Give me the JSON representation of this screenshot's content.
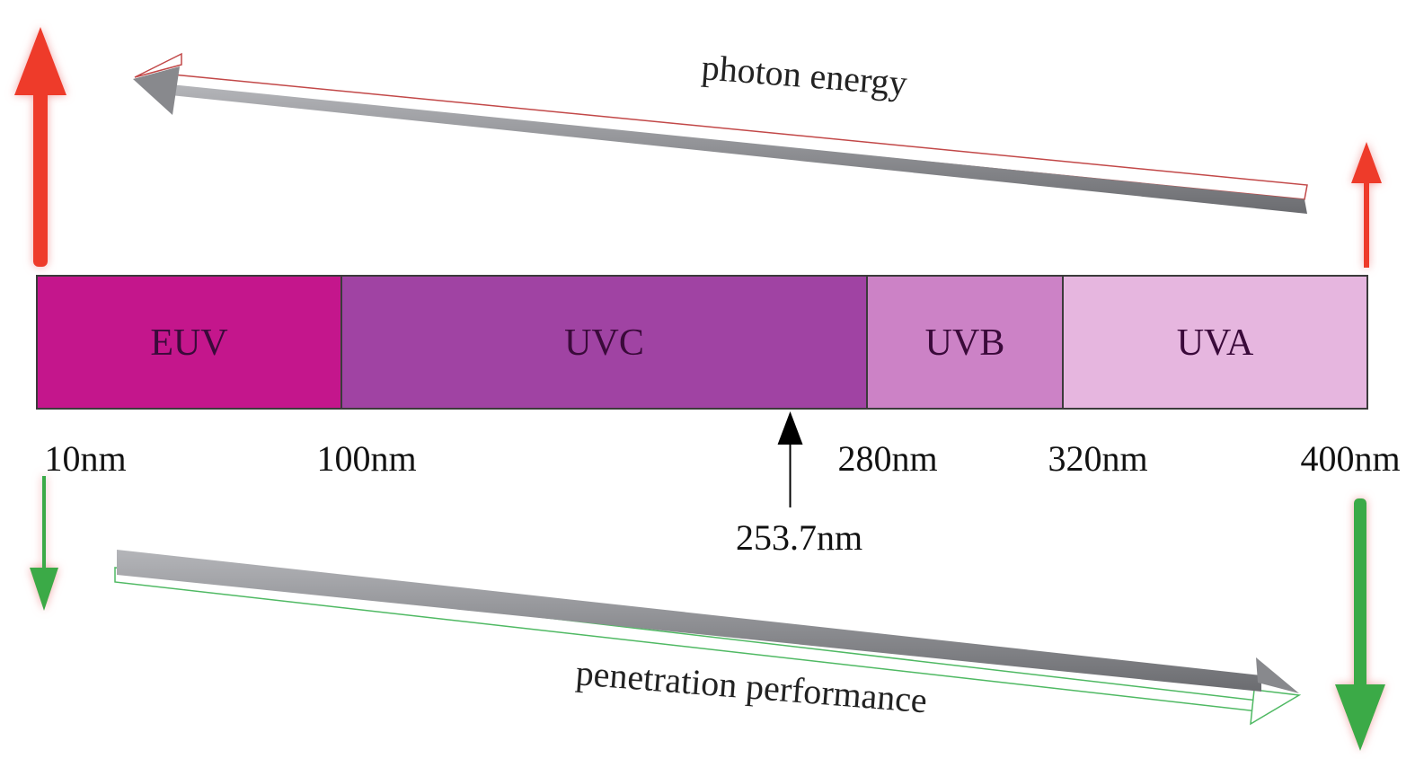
{
  "colors": {
    "euv": "#c4168c",
    "uvc": "#a043a3",
    "uvb": "#cc82c6",
    "uva": "#e6b6df",
    "energy_up": "#ee3b2c",
    "penetration_down": "#3aaa46",
    "gray_arrow": "#7c7d81"
  },
  "bands": [
    {
      "id": "euv",
      "label": "EUV",
      "start_nm": 10,
      "end_nm": 100
    },
    {
      "id": "uvc",
      "label": "UVC",
      "start_nm": 100,
      "end_nm": 280
    },
    {
      "id": "uvb",
      "label": "UVB",
      "start_nm": 280,
      "end_nm": 320
    },
    {
      "id": "uva",
      "label": "UVA",
      "start_nm": 320,
      "end_nm": 400
    }
  ],
  "ticks": [
    "10nm",
    "100nm",
    "280nm",
    "320nm",
    "400nm"
  ],
  "marker": {
    "label": "253.7nm",
    "value_nm": 253.7
  },
  "arrows": {
    "photon_energy": "photon energy",
    "penetration": "penetration performance"
  }
}
